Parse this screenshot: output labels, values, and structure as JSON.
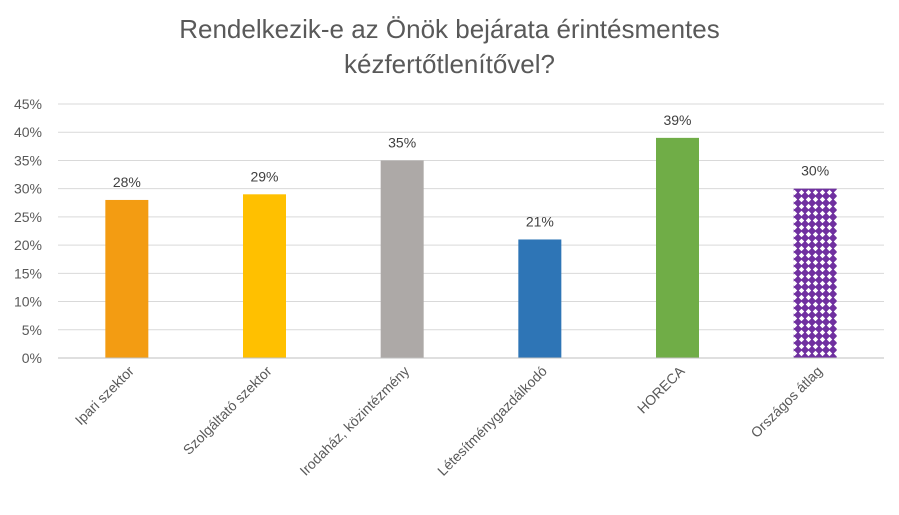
{
  "chart_data": {
    "type": "bar",
    "title_lines": [
      "Rendelkezik-e az Önök bejárata érintésmentes",
      "kézfertőtlenítővel?"
    ],
    "categories": [
      "Ipari szektor",
      "Szolgáltató szektor",
      "Irodaház, közintézmény",
      "Létesítménygazdálkodó",
      "HORECA",
      "Országos átlag"
    ],
    "values": [
      28,
      29,
      35,
      21,
      39,
      30
    ],
    "value_labels": [
      "28%",
      "29%",
      "35%",
      "21%",
      "39%",
      "30%"
    ],
    "bar_colors": [
      "#F39C12",
      "#FFC000",
      "#ADA9A7",
      "#2E75B6",
      "#70AD47",
      "#7030A0"
    ],
    "patterned_bar_index": 5,
    "yticks": [
      "0%",
      "5%",
      "10%",
      "15%",
      "20%",
      "25%",
      "30%",
      "35%",
      "40%",
      "45%"
    ],
    "ylim": [
      0,
      45
    ],
    "ytick_step": 5,
    "grid": true,
    "legend": "none"
  }
}
